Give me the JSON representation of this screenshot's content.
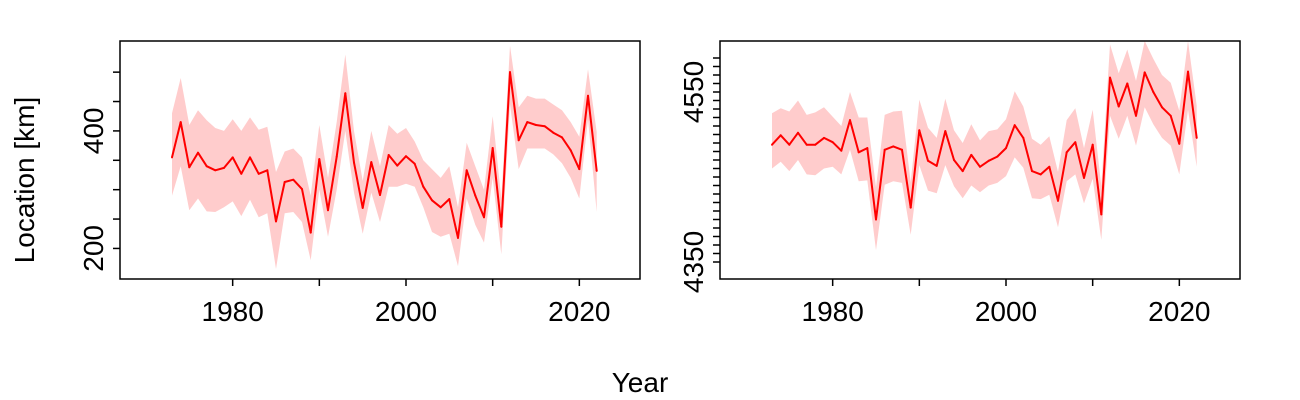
{
  "figure": {
    "xlabel": "Year",
    "ylabel": "Location [km]"
  },
  "colors": {
    "line": "#ff0000",
    "band": "#ffcccc",
    "frame": "#000000"
  },
  "chart_data": [
    {
      "type": "line",
      "title": "",
      "xlabel": "Year",
      "ylabel": "Location [km]",
      "xlim": [
        1967,
        2027
      ],
      "ylim": [
        148,
        553
      ],
      "xticks": [
        1980,
        2000,
        2020
      ],
      "xticklabels": [
        "1980",
        "2000",
        "2020"
      ],
      "xminorticks": [
        1990,
        2010
      ],
      "yticks": [
        200,
        400
      ],
      "yticklabels": [
        "200",
        "400"
      ],
      "yminorticks": [
        250,
        300,
        350,
        450,
        500
      ],
      "grid": false,
      "legend": "none",
      "series": [
        {
          "type": "line",
          "x": [
            1973,
            1974,
            1975,
            1976,
            1977,
            1978,
            1979,
            1980,
            1981,
            1982,
            1983,
            1984,
            1985,
            1986,
            1987,
            1988,
            1989,
            1990,
            1991,
            1992,
            1993,
            1994,
            1995,
            1996,
            1997,
            1998,
            1999,
            2000,
            2001,
            2002,
            2003,
            2004,
            2005,
            2006,
            2007,
            2008,
            2009,
            2010,
            2011,
            2012,
            2013,
            2014,
            2015,
            2016,
            2017,
            2018,
            2019,
            2020,
            2021,
            2022
          ],
          "y": [
            355,
            415,
            338,
            363,
            340,
            333,
            337,
            355,
            327,
            355,
            327,
            333,
            246,
            313,
            317,
            301,
            227,
            352,
            265,
            356,
            464,
            346,
            269,
            347,
            291,
            359,
            341,
            357,
            344,
            305,
            282,
            270,
            284,
            218,
            333,
            290,
            253,
            371,
            237,
            500,
            384,
            415,
            410,
            408,
            397,
            389,
            367,
            335,
            460,
            332
          ]
        },
        {
          "type": "area",
          "x": [
            1973,
            1974,
            1975,
            1976,
            1977,
            1978,
            1979,
            1980,
            1981,
            1982,
            1983,
            1984,
            1985,
            1986,
            1987,
            1988,
            1989,
            1990,
            1991,
            1992,
            1993,
            1994,
            1995,
            1996,
            1997,
            1998,
            1999,
            2000,
            2001,
            2002,
            2003,
            2004,
            2005,
            2006,
            2007,
            2008,
            2009,
            2010,
            2011,
            2012,
            2013,
            2014,
            2015,
            2016,
            2017,
            2018,
            2019,
            2020,
            2021,
            2022
          ],
          "y_lower": [
            290,
            340,
            265,
            285,
            263,
            262,
            270,
            280,
            255,
            283,
            253,
            260,
            165,
            260,
            262,
            245,
            180,
            300,
            220,
            300,
            400,
            295,
            225,
            295,
            245,
            305,
            305,
            310,
            305,
            270,
            228,
            220,
            225,
            170,
            285,
            240,
            210,
            320,
            190,
            445,
            335,
            370,
            370,
            370,
            360,
            345,
            320,
            285,
            420,
            262
          ],
          "y_upper": [
            430,
            490,
            410,
            435,
            418,
            405,
            400,
            420,
            400,
            423,
            402,
            407,
            330,
            365,
            370,
            355,
            290,
            410,
            320,
            415,
            530,
            400,
            315,
            400,
            340,
            410,
            395,
            405,
            382,
            350,
            335,
            320,
            340,
            270,
            380,
            340,
            300,
            425,
            285,
            545,
            440,
            460,
            455,
            455,
            445,
            435,
            415,
            390,
            505,
            398
          ]
        }
      ]
    },
    {
      "type": "line",
      "title": "",
      "xlabel": "Year",
      "ylabel": "",
      "xlim": [
        1967,
        2027
      ],
      "ylim": [
        4330,
        4610
      ],
      "xticks": [
        1980,
        2000,
        2020
      ],
      "xticklabels": [
        "1980",
        "2000",
        "2020"
      ],
      "xminorticks": [
        1990,
        2010
      ],
      "yticks": [
        4350,
        4550
      ],
      "yticklabels": [
        "4350",
        "4550"
      ],
      "yminorticks": [
        4360,
        4370,
        4380,
        4390,
        4400,
        4410,
        4420,
        4430,
        4440,
        4450,
        4460,
        4470,
        4480,
        4490,
        4500,
        4510,
        4520,
        4530,
        4540,
        4560,
        4570,
        4580,
        4590
      ],
      "grid": false,
      "legend": "none",
      "series": [
        {
          "type": "line",
          "x": [
            1973,
            1974,
            1975,
            1976,
            1977,
            1978,
            1979,
            1980,
            1981,
            1982,
            1983,
            1984,
            1985,
            1986,
            1987,
            1988,
            1989,
            1990,
            1991,
            1992,
            1993,
            1994,
            1995,
            1996,
            1997,
            1998,
            1999,
            2000,
            2001,
            2002,
            2003,
            2004,
            2005,
            2006,
            2007,
            2008,
            2009,
            2010,
            2011,
            2012,
            2013,
            2014,
            2015,
            2016,
            2017,
            2018,
            2019,
            2020,
            2021,
            2022
          ],
          "y": [
            4488,
            4499,
            4488,
            4502,
            4488,
            4488,
            4496,
            4491,
            4481,
            4517,
            4479,
            4484,
            4400,
            4482,
            4486,
            4482,
            4414,
            4505,
            4469,
            4463,
            4504,
            4470,
            4457,
            4476,
            4462,
            4469,
            4474,
            4484,
            4511,
            4496,
            4457,
            4453,
            4462,
            4422,
            4479,
            4491,
            4449,
            4488,
            4406,
            4567,
            4533,
            4560,
            4522,
            4573,
            4550,
            4532,
            4522,
            4489,
            4574,
            4496
          ]
        },
        {
          "type": "area",
          "x": [
            1973,
            1974,
            1975,
            1976,
            1977,
            1978,
            1979,
            1980,
            1981,
            1982,
            1983,
            1984,
            1985,
            1986,
            1987,
            1988,
            1989,
            1990,
            1991,
            1992,
            1993,
            1994,
            1995,
            1996,
            1997,
            1998,
            1999,
            2000,
            2001,
            2002,
            2003,
            2004,
            2005,
            2006,
            2007,
            2008,
            2009,
            2010,
            2011,
            2012,
            2013,
            2014,
            2015,
            2016,
            2017,
            2018,
            2019,
            2020,
            2021,
            2022
          ],
          "y_lower": [
            4460,
            4468,
            4457,
            4470,
            4453,
            4452,
            4460,
            4462,
            4453,
            4482,
            4445,
            4446,
            4364,
            4441,
            4445,
            4443,
            4382,
            4464,
            4434,
            4431,
            4464,
            4439,
            4425,
            4440,
            4432,
            4440,
            4443,
            4451,
            4473,
            4461,
            4425,
            4424,
            4429,
            4391,
            4445,
            4453,
            4419,
            4448,
            4376,
            4522,
            4495,
            4522,
            4487,
            4532,
            4512,
            4496,
            4487,
            4453,
            4529,
            4462
          ],
          "y_upper": [
            4525,
            4531,
            4527,
            4540,
            4523,
            4526,
            4532,
            4521,
            4510,
            4550,
            4520,
            4520,
            4438,
            4523,
            4527,
            4528,
            4444,
            4541,
            4508,
            4496,
            4542,
            4505,
            4490,
            4512,
            4493,
            4504,
            4506,
            4518,
            4551,
            4533,
            4495,
            4488,
            4498,
            4456,
            4517,
            4531,
            4484,
            4529,
            4439,
            4606,
            4572,
            4600,
            4563,
            4610,
            4589,
            4570,
            4561,
            4528,
            4610,
            4534
          ]
        }
      ]
    }
  ]
}
